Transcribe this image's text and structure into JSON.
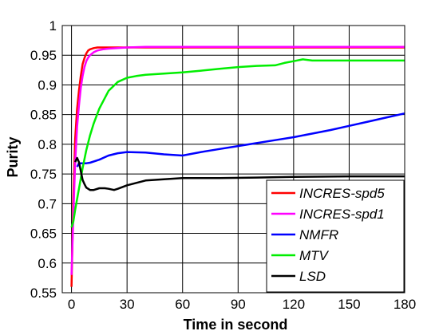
{
  "chart_data": {
    "type": "line",
    "title": "",
    "xlabel": "Time in second",
    "ylabel": "Purity",
    "xlim": [
      -5,
      180
    ],
    "ylim": [
      0.55,
      1.0
    ],
    "xticks": [
      0,
      30,
      60,
      90,
      120,
      150,
      180
    ],
    "yticks": [
      0.55,
      0.6,
      0.65,
      0.7,
      0.75,
      0.8,
      0.85,
      0.9,
      0.95,
      1.0
    ],
    "ytick_labels": [
      "0.55",
      "0.6",
      "0.65",
      "0.7",
      "0.75",
      "0.8",
      "0.85",
      "0.9",
      "0.95",
      "1"
    ],
    "grid": true,
    "legend_position": "bottom-right",
    "series": [
      {
        "name": "INCRES-spd5",
        "color": "#ff0000",
        "x": [
          0,
          1,
          2,
          3,
          4,
          5,
          6,
          7,
          8,
          9,
          10,
          12,
          14,
          17,
          20,
          30,
          60,
          90,
          120,
          150,
          180
        ],
        "y": [
          0.56,
          0.71,
          0.81,
          0.86,
          0.89,
          0.915,
          0.935,
          0.945,
          0.953,
          0.958,
          0.96,
          0.962,
          0.963,
          0.963,
          0.963,
          0.963,
          0.963,
          0.963,
          0.963,
          0.963,
          0.963
        ]
      },
      {
        "name": "INCRES-spd1",
        "color": "#ff00ff",
        "x": [
          0,
          1,
          2,
          3,
          4,
          5,
          6,
          7,
          8,
          9,
          10,
          12,
          14,
          17,
          20,
          25,
          30,
          40,
          60,
          90,
          120,
          150,
          180
        ],
        "y": [
          0.58,
          0.68,
          0.77,
          0.83,
          0.865,
          0.895,
          0.915,
          0.93,
          0.94,
          0.946,
          0.95,
          0.955,
          0.958,
          0.96,
          0.961,
          0.962,
          0.963,
          0.964,
          0.964,
          0.964,
          0.964,
          0.964,
          0.964
        ]
      },
      {
        "name": "NMFR",
        "color": "#0000ff",
        "x": [
          3,
          4,
          6,
          8,
          10,
          15,
          20,
          25,
          30,
          40,
          50,
          60,
          70,
          80,
          90,
          100,
          110,
          120,
          130,
          140,
          150,
          160,
          170,
          180
        ],
        "y": [
          0.762,
          0.768,
          0.768,
          0.768,
          0.769,
          0.774,
          0.781,
          0.785,
          0.787,
          0.786,
          0.783,
          0.781,
          0.787,
          0.792,
          0.797,
          0.802,
          0.807,
          0.812,
          0.818,
          0.824,
          0.831,
          0.838,
          0.845,
          0.852
        ]
      },
      {
        "name": "MTV",
        "color": "#00ee00",
        "x": [
          0,
          1,
          2,
          4,
          6,
          8,
          10,
          12,
          15,
          20,
          25,
          30,
          35,
          40,
          50,
          60,
          70,
          80,
          90,
          100,
          110,
          115,
          120,
          125,
          130,
          150,
          180
        ],
        "y": [
          0.66,
          0.67,
          0.69,
          0.725,
          0.76,
          0.79,
          0.815,
          0.835,
          0.86,
          0.89,
          0.905,
          0.912,
          0.915,
          0.917,
          0.919,
          0.921,
          0.924,
          0.927,
          0.93,
          0.932,
          0.933,
          0.937,
          0.94,
          0.943,
          0.941,
          0.941,
          0.941
        ]
      },
      {
        "name": "LSD",
        "color": "#000000",
        "x": [
          2,
          3,
          4,
          5,
          6,
          7,
          8,
          10,
          12,
          15,
          18,
          20,
          23,
          25,
          30,
          35,
          40,
          50,
          60,
          80,
          100,
          120,
          150,
          180
        ],
        "y": [
          0.77,
          0.777,
          0.77,
          0.755,
          0.74,
          0.733,
          0.727,
          0.723,
          0.723,
          0.726,
          0.726,
          0.725,
          0.723,
          0.725,
          0.731,
          0.735,
          0.739,
          0.741,
          0.743,
          0.743,
          0.744,
          0.745,
          0.746,
          0.746
        ]
      }
    ]
  }
}
